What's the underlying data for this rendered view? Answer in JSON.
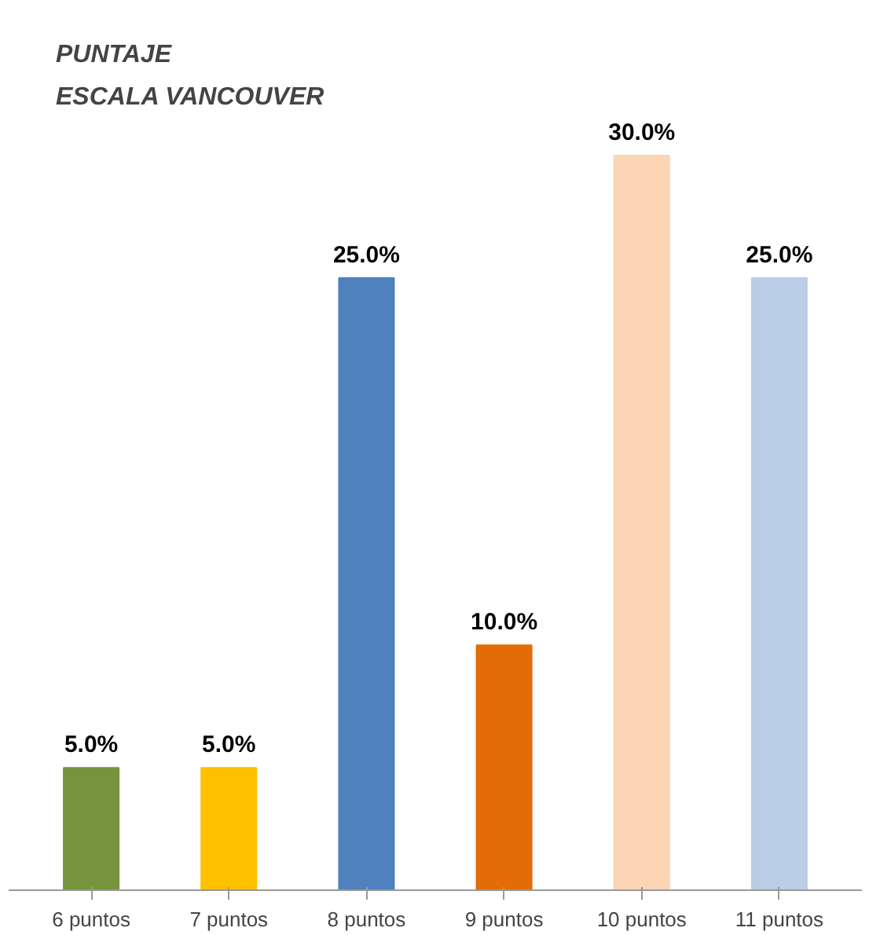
{
  "chart_data": {
    "type": "bar",
    "title": "PUNTAJE\nESCALA VANCOUVER",
    "categories": [
      "6 puntos",
      "7 puntos",
      "8 puntos",
      "9 puntos",
      "10 puntos",
      "11 puntos"
    ],
    "values": [
      5.0,
      5.0,
      25.0,
      10.0,
      30.0,
      25.0
    ],
    "colors": [
      "#77933c",
      "#ffc000",
      "#4f81bd",
      "#e36c09",
      "#fcd5b5",
      "#b9cde5"
    ],
    "value_labels": [
      "5.0%",
      "5.0%",
      "25.0%",
      "10.0%",
      "30.0%",
      "25.0%"
    ],
    "grid": false
  }
}
